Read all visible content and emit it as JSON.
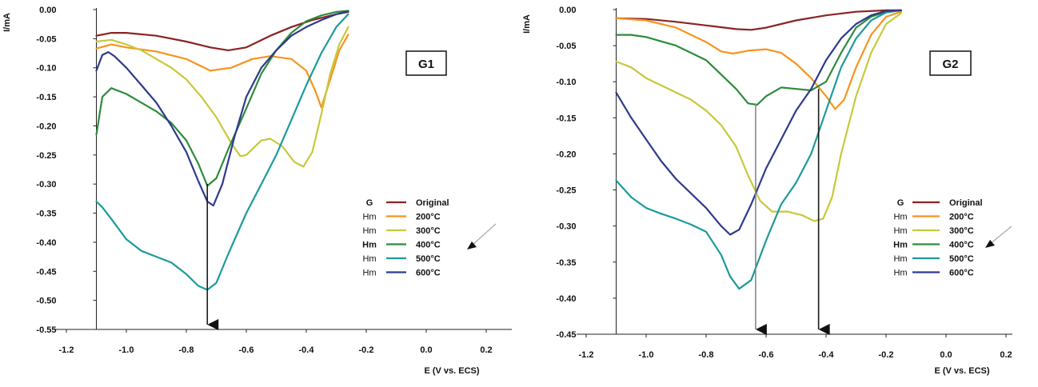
{
  "chart_data": [
    {
      "type": "line",
      "panel_label": "G1",
      "xlabel": "E (V vs. ECS)",
      "ylabel": "I/mA",
      "xlim": [
        -1.2,
        0.3
      ],
      "ylim": [
        -0.55,
        0.0
      ],
      "x_ticks": [
        "-1.2",
        "-1.0",
        "-0.8",
        "-0.6",
        "-0.4",
        "-0.2",
        "0.0",
        "0.2"
      ],
      "x_tick_values": [
        -1.2,
        -1.0,
        -0.8,
        -0.6,
        -0.4,
        -0.2,
        0.0,
        0.2
      ],
      "y_ticks": [
        "0.00",
        "-0.05",
        "-0.10",
        "-0.15",
        "-0.20",
        "-0.25",
        "-0.30",
        "-0.35",
        "-0.40",
        "-0.45",
        "-0.50",
        "-0.55"
      ],
      "y_tick_values": [
        0.0,
        -0.05,
        -0.1,
        -0.15,
        -0.2,
        -0.25,
        -0.3,
        -0.35,
        -0.4,
        -0.45,
        -0.5,
        -0.55
      ],
      "grid": false,
      "legend_position": "bottom-right",
      "legend_entries": [
        {
          "prefix": "G",
          "prefix_bold": true,
          "label": "Original",
          "color": "#8B2323"
        },
        {
          "prefix": "Hm",
          "prefix_bold": false,
          "label": "200°C",
          "color": "#F7941D"
        },
        {
          "prefix": "Hm",
          "prefix_bold": false,
          "label": "300°C",
          "color": "#C8C83C"
        },
        {
          "prefix": "Hm",
          "prefix_bold": true,
          "label": "400°C",
          "color": "#2E8B3C"
        },
        {
          "prefix": "Hm",
          "prefix_bold": false,
          "label": "500°C",
          "color": "#1E9A9A"
        },
        {
          "prefix": "Hm",
          "prefix_bold": false,
          "label": "600°C",
          "color": "#2E3A8C"
        }
      ],
      "series": [
        {
          "name": "Original",
          "color": "#8B2323",
          "x": [
            -1.1,
            -1.05,
            -1.0,
            -0.9,
            -0.8,
            -0.72,
            -0.66,
            -0.6,
            -0.52,
            -0.45,
            -0.38,
            -0.3,
            -0.26
          ],
          "y": [
            -0.045,
            -0.04,
            -0.04,
            -0.045,
            -0.055,
            -0.065,
            -0.07,
            -0.065,
            -0.045,
            -0.03,
            -0.018,
            -0.008,
            -0.004
          ]
        },
        {
          "name": "200°C",
          "color": "#F7941D",
          "x": [
            -1.1,
            -1.05,
            -1.0,
            -0.9,
            -0.8,
            -0.72,
            -0.65,
            -0.58,
            -0.52,
            -0.45,
            -0.4,
            -0.37,
            -0.35,
            -0.32,
            -0.29,
            -0.26
          ],
          "y": [
            -0.067,
            -0.06,
            -0.065,
            -0.072,
            -0.085,
            -0.105,
            -0.1,
            -0.085,
            -0.08,
            -0.085,
            -0.105,
            -0.14,
            -0.168,
            -0.12,
            -0.07,
            -0.043
          ]
        },
        {
          "name": "300°C",
          "color": "#C8C83C",
          "x": [
            -1.1,
            -1.05,
            -1.0,
            -0.95,
            -0.9,
            -0.85,
            -0.8,
            -0.75,
            -0.7,
            -0.65,
            -0.62,
            -0.6,
            -0.55,
            -0.52,
            -0.48,
            -0.44,
            -0.41,
            -0.38,
            -0.35,
            -0.32,
            -0.29,
            -0.26
          ],
          "y": [
            -0.055,
            -0.052,
            -0.06,
            -0.07,
            -0.085,
            -0.1,
            -0.12,
            -0.15,
            -0.185,
            -0.23,
            -0.252,
            -0.25,
            -0.225,
            -0.222,
            -0.235,
            -0.262,
            -0.27,
            -0.245,
            -0.18,
            -0.11,
            -0.06,
            -0.03
          ]
        },
        {
          "name": "400°C",
          "color": "#2E8B3C",
          "x": [
            -1.1,
            -1.08,
            -1.05,
            -1.0,
            -0.95,
            -0.9,
            -0.85,
            -0.8,
            -0.76,
            -0.73,
            -0.7,
            -0.66,
            -0.6,
            -0.55,
            -0.5,
            -0.45,
            -0.4,
            -0.35,
            -0.3,
            -0.26
          ],
          "y": [
            -0.215,
            -0.15,
            -0.135,
            -0.145,
            -0.16,
            -0.175,
            -0.195,
            -0.225,
            -0.265,
            -0.303,
            -0.29,
            -0.24,
            -0.17,
            -0.11,
            -0.07,
            -0.04,
            -0.02,
            -0.01,
            -0.004,
            -0.002
          ]
        },
        {
          "name": "500°C",
          "color": "#1E9A9A",
          "x": [
            -1.1,
            -1.08,
            -1.05,
            -1.0,
            -0.95,
            -0.9,
            -0.85,
            -0.8,
            -0.76,
            -0.73,
            -0.7,
            -0.66,
            -0.6,
            -0.55,
            -0.5,
            -0.45,
            -0.4,
            -0.35,
            -0.3,
            -0.26
          ],
          "y": [
            -0.33,
            -0.34,
            -0.36,
            -0.395,
            -0.415,
            -0.425,
            -0.435,
            -0.455,
            -0.475,
            -0.482,
            -0.47,
            -0.42,
            -0.35,
            -0.3,
            -0.25,
            -0.19,
            -0.13,
            -0.075,
            -0.03,
            -0.008
          ]
        },
        {
          "name": "600°C",
          "color": "#2E3A8C",
          "x": [
            -1.1,
            -1.08,
            -1.06,
            -1.04,
            -1.0,
            -0.95,
            -0.9,
            -0.85,
            -0.8,
            -0.76,
            -0.73,
            -0.71,
            -0.68,
            -0.64,
            -0.6,
            -0.55,
            -0.5,
            -0.45,
            -0.4,
            -0.35,
            -0.3,
            -0.26
          ],
          "y": [
            -0.105,
            -0.078,
            -0.073,
            -0.08,
            -0.1,
            -0.13,
            -0.16,
            -0.2,
            -0.245,
            -0.295,
            -0.33,
            -0.337,
            -0.3,
            -0.22,
            -0.15,
            -0.1,
            -0.07,
            -0.045,
            -0.03,
            -0.018,
            -0.008,
            -0.003
          ]
        }
      ],
      "markers": [
        {
          "type": "vertical-arrow",
          "x": -0.73,
          "from_y": -0.3,
          "to_y": -0.55,
          "color": "#1a1a1a"
        }
      ]
    },
    {
      "type": "line",
      "panel_label": "G2",
      "xlabel": "E (V vs. ECS)",
      "ylabel": "I/mA",
      "xlim": [
        -1.2,
        0.3
      ],
      "ylim": [
        -0.45,
        0.0
      ],
      "x_ticks": [
        "-1.2",
        "-1.0",
        "-0.8",
        "-0.6",
        "-0.4",
        "-0.2",
        "0.0",
        "0.2"
      ],
      "x_tick_values": [
        -1.2,
        -1.0,
        -0.8,
        -0.6,
        -0.4,
        -0.2,
        0.0,
        0.2
      ],
      "y_ticks": [
        "0.00",
        "-0.05",
        "-0.10",
        "-0.15",
        "-0.20",
        "-0.25",
        "-0.30",
        "-0.35",
        "-0.40",
        "-0.45"
      ],
      "y_tick_values": [
        0.0,
        -0.05,
        -0.1,
        -0.15,
        -0.2,
        -0.25,
        -0.3,
        -0.35,
        -0.4,
        -0.45
      ],
      "grid": false,
      "legend_position": "bottom-right",
      "legend_entries": [
        {
          "prefix": "G",
          "prefix_bold": true,
          "label": "Original",
          "color": "#8B2323"
        },
        {
          "prefix": "Hm",
          "prefix_bold": false,
          "label": "200°C",
          "color": "#F7941D"
        },
        {
          "prefix": "Hm",
          "prefix_bold": false,
          "label": "300°C",
          "color": "#C8C83C"
        },
        {
          "prefix": "Hm",
          "prefix_bold": true,
          "label": "400°C",
          "color": "#2E8B3C"
        },
        {
          "prefix": "Hm",
          "prefix_bold": false,
          "label": "500°C",
          "color": "#1E9A9A"
        },
        {
          "prefix": "Hm",
          "prefix_bold": false,
          "label": "600°C",
          "color": "#2E3A8C"
        }
      ],
      "series": [
        {
          "name": "Original",
          "color": "#8B2323",
          "x": [
            -1.1,
            -1.0,
            -0.9,
            -0.8,
            -0.7,
            -0.65,
            -0.6,
            -0.5,
            -0.4,
            -0.3,
            -0.2,
            -0.15
          ],
          "y": [
            -0.012,
            -0.013,
            -0.017,
            -0.022,
            -0.027,
            -0.028,
            -0.025,
            -0.015,
            -0.008,
            -0.003,
            -0.001,
            -0.001
          ]
        },
        {
          "name": "200°C",
          "color": "#F7941D",
          "x": [
            -1.1,
            -1.0,
            -0.9,
            -0.8,
            -0.75,
            -0.71,
            -0.66,
            -0.6,
            -0.55,
            -0.5,
            -0.45,
            -0.4,
            -0.37,
            -0.34,
            -0.3,
            -0.25,
            -0.2,
            -0.15
          ],
          "y": [
            -0.012,
            -0.015,
            -0.025,
            -0.045,
            -0.058,
            -0.061,
            -0.057,
            -0.055,
            -0.06,
            -0.075,
            -0.095,
            -0.12,
            -0.138,
            -0.125,
            -0.08,
            -0.035,
            -0.01,
            -0.003
          ]
        },
        {
          "name": "300°C",
          "color": "#C8C83C",
          "x": [
            -1.1,
            -1.05,
            -1.0,
            -0.95,
            -0.9,
            -0.85,
            -0.8,
            -0.75,
            -0.7,
            -0.66,
            -0.62,
            -0.58,
            -0.53,
            -0.48,
            -0.44,
            -0.41,
            -0.38,
            -0.35,
            -0.3,
            -0.25,
            -0.2,
            -0.15
          ],
          "y": [
            -0.072,
            -0.08,
            -0.095,
            -0.105,
            -0.115,
            -0.125,
            -0.14,
            -0.16,
            -0.19,
            -0.23,
            -0.265,
            -0.28,
            -0.28,
            -0.285,
            -0.293,
            -0.29,
            -0.26,
            -0.2,
            -0.12,
            -0.06,
            -0.02,
            -0.005
          ]
        },
        {
          "name": "400°C",
          "color": "#2E8B3C",
          "x": [
            -1.1,
            -1.05,
            -1.0,
            -0.9,
            -0.8,
            -0.7,
            -0.66,
            -0.63,
            -0.6,
            -0.55,
            -0.5,
            -0.45,
            -0.4,
            -0.35,
            -0.3,
            -0.25,
            -0.2,
            -0.15
          ],
          "y": [
            -0.035,
            -0.035,
            -0.038,
            -0.05,
            -0.07,
            -0.11,
            -0.13,
            -0.132,
            -0.12,
            -0.108,
            -0.11,
            -0.112,
            -0.1,
            -0.06,
            -0.025,
            -0.01,
            -0.003,
            -0.001
          ]
        },
        {
          "name": "500°C",
          "color": "#1E9A9A",
          "x": [
            -1.1,
            -1.05,
            -1.0,
            -0.95,
            -0.9,
            -0.85,
            -0.8,
            -0.75,
            -0.72,
            -0.69,
            -0.65,
            -0.6,
            -0.55,
            -0.5,
            -0.45,
            -0.4,
            -0.35,
            -0.3,
            -0.25,
            -0.2,
            -0.15
          ],
          "y": [
            -0.237,
            -0.26,
            -0.275,
            -0.283,
            -0.29,
            -0.298,
            -0.308,
            -0.34,
            -0.37,
            -0.387,
            -0.375,
            -0.32,
            -0.27,
            -0.24,
            -0.2,
            -0.14,
            -0.08,
            -0.04,
            -0.015,
            -0.004,
            -0.001
          ]
        },
        {
          "name": "600°C",
          "color": "#2E3A8C",
          "x": [
            -1.1,
            -1.05,
            -1.0,
            -0.95,
            -0.9,
            -0.85,
            -0.8,
            -0.75,
            -0.72,
            -0.69,
            -0.65,
            -0.6,
            -0.55,
            -0.5,
            -0.45,
            -0.4,
            -0.35,
            -0.3,
            -0.25,
            -0.2,
            -0.15
          ],
          "y": [
            -0.115,
            -0.15,
            -0.18,
            -0.21,
            -0.235,
            -0.255,
            -0.275,
            -0.3,
            -0.312,
            -0.305,
            -0.27,
            -0.22,
            -0.18,
            -0.14,
            -0.11,
            -0.07,
            -0.04,
            -0.02,
            -0.008,
            -0.002,
            -0.001
          ]
        }
      ],
      "markers": [
        {
          "type": "vertical-arrow",
          "x": -0.635,
          "from_y": -0.13,
          "to_y": -0.45,
          "color": "#888888"
        },
        {
          "type": "vertical-arrow",
          "x": -0.425,
          "from_y": -0.11,
          "to_y": -0.45,
          "color": "#1a1a1a"
        }
      ]
    }
  ]
}
